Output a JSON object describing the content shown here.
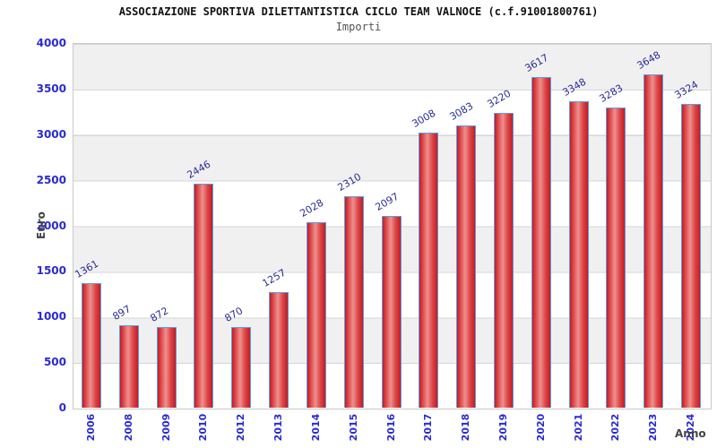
{
  "header": {
    "title": "ASSOCIAZIONE SPORTIVA DILETTANTISTICA CICLO TEAM VALNOCE (c.f.91001800761)",
    "subtitle": "Importi"
  },
  "chart_data": {
    "type": "bar",
    "title": "ASSOCIAZIONE SPORTIVA DILETTANTISTICA CICLO TEAM VALNOCE (c.f.91001800761)",
    "subtitle": "Importi",
    "xlabel": "Anno",
    "ylabel": "Euro",
    "categories": [
      "2006",
      "2008",
      "2009",
      "2010",
      "2012",
      "2013",
      "2014",
      "2015",
      "2016",
      "2017",
      "2018",
      "2019",
      "2020",
      "2021",
      "2022",
      "2023",
      "2024"
    ],
    "values": [
      1361,
      897,
      872,
      2446,
      870,
      1257,
      2028,
      2310,
      2097,
      3008,
      3083,
      3220,
      3617,
      3348,
      3283,
      3648,
      3324
    ],
    "ylim": [
      0,
      4000
    ],
    "ytick_step": 500,
    "yticks": [
      0,
      500,
      1000,
      1500,
      2000,
      2500,
      3000,
      3500,
      4000
    ],
    "grid": "horizontal-bands",
    "legend": null,
    "colors": {
      "axis_tick_text": "#2a2ad2",
      "value_label_text": "#2b2b99",
      "bar_border": "#58a0dd",
      "bar_edge": "#bf1d28",
      "bar_mid": "#e04545",
      "bar_highlight": "#ec9191",
      "band_gray": "#f0f0f0",
      "plot_border": "#c9c9c9",
      "axis_label_text": "#444444",
      "title_text": "#111111",
      "subtitle_text": "#555555"
    }
  }
}
